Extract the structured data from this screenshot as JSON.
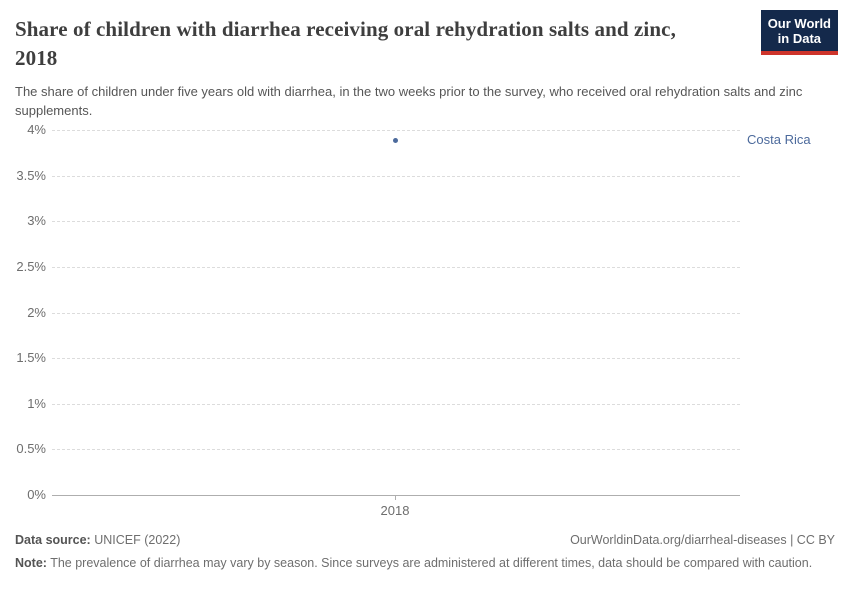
{
  "logo": {
    "line1": "Our World",
    "line2": "in Data"
  },
  "header": {
    "title": "Share of children with diarrhea receiving oral rehydration salts and zinc, 2018",
    "subtitle": "The share of children under five years old with diarrhea, in the two weeks prior to the survey, who received oral rehydration salts and zinc supplements."
  },
  "chart_data": {
    "type": "scatter",
    "title": "Share of children with diarrhea receiving oral rehydration salts and zinc, 2018",
    "series": [
      {
        "name": "Costa Rica",
        "color": "#4C6A9C",
        "points": [
          {
            "x": 2018,
            "y": 3.89
          }
        ]
      }
    ],
    "xticks": [
      {
        "value": 2018,
        "label": "2018"
      }
    ],
    "yticks": [
      {
        "value": 0,
        "label": "0%"
      },
      {
        "value": 0.5,
        "label": "0.5%"
      },
      {
        "value": 1,
        "label": "1%"
      },
      {
        "value": 1.5,
        "label": "1.5%"
      },
      {
        "value": 2,
        "label": "2%"
      },
      {
        "value": 2.5,
        "label": "2.5%"
      },
      {
        "value": 3,
        "label": "3%"
      },
      {
        "value": 3.5,
        "label": "3.5%"
      },
      {
        "value": 4,
        "label": "4%"
      }
    ],
    "ylim": [
      0,
      4
    ],
    "xlabel": "",
    "ylabel": "",
    "grid": "horizontal-dashed",
    "legend": "entity-label-right-of-plot"
  },
  "footer": {
    "source_label": "Data source:",
    "source_value": "UNICEF (2022)",
    "link": "OurWorldinData.org/diarrheal-diseases | CC BY",
    "note_label": "Note:",
    "note_text": "The prevalence of diarrhea may vary by season. Since surveys are administered at different times, data should be compared with caution."
  },
  "colors": {
    "series_blue": "#4C6A9C",
    "logo_background": "#14294B",
    "logo_stripe": "#CE342B",
    "gridline": "#dcdcdc",
    "axis_line": "#aeaeae",
    "title_text": "#3e3e3e",
    "body_text": "#6e6e6e"
  }
}
